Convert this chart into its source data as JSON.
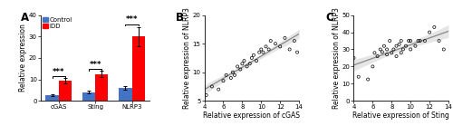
{
  "panel_A": {
    "categories": [
      "cGAS",
      "Sting",
      "NLRP3"
    ],
    "control_means": [
      2.5,
      4.0,
      6.0
    ],
    "control_errors": [
      0.4,
      0.6,
      0.7
    ],
    "idd_means": [
      9.5,
      12.5,
      30.0
    ],
    "idd_errors": [
      1.2,
      1.5,
      4.5
    ],
    "control_color": "#4472C4",
    "idd_color": "#FF0000",
    "ylabel": "Relative expression",
    "ylim": [
      0,
      40
    ],
    "yticks": [
      0,
      10,
      20,
      30,
      40
    ]
  },
  "panel_B": {
    "xlabel": "Relative expression of cGAS",
    "ylabel": "Relative expression of NLRP3",
    "xlim": [
      4,
      14
    ],
    "ylim": [
      5,
      20
    ],
    "xticks": [
      4,
      6,
      8,
      10,
      12,
      14
    ],
    "yticks": [
      5,
      10,
      15,
      20
    ],
    "scatter_x": [
      4.2,
      4.8,
      5.5,
      6.0,
      6.3,
      6.8,
      7.0,
      7.2,
      7.5,
      7.8,
      8.0,
      8.2,
      8.5,
      8.8,
      9.0,
      9.2,
      9.5,
      9.8,
      10.0,
      10.2,
      10.5,
      10.8,
      11.0,
      11.5,
      12.0,
      12.5,
      13.0,
      13.5,
      13.8
    ],
    "scatter_y": [
      6.0,
      7.5,
      7.0,
      8.5,
      9.5,
      9.0,
      10.0,
      9.5,
      11.0,
      10.5,
      11.5,
      12.0,
      11.0,
      11.5,
      12.5,
      13.0,
      12.0,
      13.5,
      14.0,
      13.5,
      14.5,
      14.0,
      15.5,
      15.0,
      14.5,
      16.0,
      14.0,
      15.5,
      13.5
    ],
    "panel_label": "B"
  },
  "panel_C": {
    "xlabel": "Relative expression of Sting",
    "ylabel": "Relative expression of NLRP3",
    "xlim": [
      4,
      14
    ],
    "ylim": [
      0,
      50
    ],
    "xticks": [
      4,
      6,
      8,
      10,
      12,
      14
    ],
    "yticks": [
      0,
      10,
      20,
      30,
      40,
      50
    ],
    "scatter_x": [
      4.0,
      4.5,
      5.5,
      6.0,
      6.2,
      6.5,
      6.8,
      7.0,
      7.2,
      7.5,
      7.5,
      7.8,
      8.0,
      8.2,
      8.5,
      8.5,
      8.8,
      9.0,
      9.0,
      9.2,
      9.5,
      9.8,
      10.0,
      10.0,
      10.5,
      10.8,
      11.0,
      11.5,
      12.0,
      12.5,
      13.0,
      13.5
    ],
    "scatter_y": [
      25.0,
      14.0,
      12.5,
      20.0,
      28.0,
      26.0,
      30.0,
      28.5,
      32.0,
      27.0,
      30.0,
      35.0,
      28.0,
      30.0,
      32.0,
      26.0,
      33.0,
      28.0,
      35.0,
      30.0,
      32.0,
      35.0,
      30.0,
      35.0,
      32.0,
      35.0,
      35.0,
      35.0,
      40.0,
      43.0,
      35.0,
      30.0
    ],
    "panel_label": "C"
  },
  "figure_bg": "#ffffff",
  "font_size": 5.5,
  "tick_font_size": 5.0
}
